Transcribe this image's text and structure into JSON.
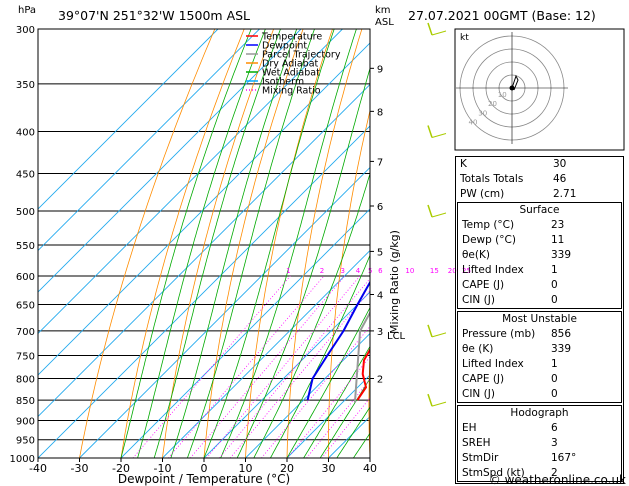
{
  "header": {
    "hpa_label": "hPa",
    "location": "39°07'N  251°32'W  1500m  ASL",
    "km_label": "km",
    "asl_label": "ASL",
    "datetime": "27.07.2021  00GMT  (Base: 12)"
  },
  "footer": {
    "credit": "© weatheronline.co.uk"
  },
  "chart_data": {
    "type": "skew-t",
    "xlabel": "Dewpoint / Temperature (°C)",
    "ylabel_right": "Mixing Ratio (g/kg)",
    "x_ticks": [
      -40,
      -30,
      -20,
      -10,
      0,
      10,
      20,
      30,
      40
    ],
    "pressure_ticks": [
      300,
      350,
      400,
      450,
      500,
      550,
      600,
      650,
      700,
      750,
      800,
      850,
      900,
      950,
      1000
    ],
    "pressure_range": [
      300,
      1000
    ],
    "temp_range": [
      -40,
      40
    ],
    "km_ticks": [
      {
        "p": 800,
        "label": "2"
      },
      {
        "p": 700,
        "label": "3"
      },
      {
        "p": 632,
        "label": "4"
      },
      {
        "p": 560,
        "label": "5"
      },
      {
        "p": 493,
        "label": "6"
      },
      {
        "p": 435,
        "label": "7"
      },
      {
        "p": 378,
        "label": "8"
      },
      {
        "p": 335,
        "label": "9"
      }
    ],
    "lcl": {
      "p": 700,
      "label": "LCL"
    },
    "mixing_ratio_labels": [
      "1",
      "2",
      "3",
      "4",
      "5",
      "6",
      "10",
      "15",
      "20",
      "25"
    ],
    "mixing_ratio_values": [
      1,
      2,
      3,
      4,
      5,
      6,
      10,
      15,
      20,
      25
    ],
    "legend": [
      {
        "name": "Temperature",
        "color": "#ff0000",
        "style": "solid"
      },
      {
        "name": "Dewpoint",
        "color": "#0000ff",
        "style": "solid"
      },
      {
        "name": "Parcel Trajectory",
        "color": "#999999",
        "style": "solid"
      },
      {
        "name": "Dry Adiabat",
        "color": "#ff8c00",
        "style": "solid"
      },
      {
        "name": "Wet Adiabat",
        "color": "#00aa00",
        "style": "solid"
      },
      {
        "name": "Isotherm",
        "color": "#00aaff",
        "style": "solid"
      },
      {
        "name": "Mixing Ratio",
        "color": "#ff00ff",
        "style": "dotted"
      }
    ],
    "temperature": [
      {
        "p": 850,
        "t": 23
      },
      {
        "p": 820,
        "t": 22
      },
      {
        "p": 790,
        "t": 18
      },
      {
        "p": 760,
        "t": 15
      },
      {
        "p": 700,
        "t": 12
      },
      {
        "p": 650,
        "t": 9
      },
      {
        "p": 600,
        "t": 5
      },
      {
        "p": 550,
        "t": 1
      },
      {
        "p": 500,
        "t": -4
      },
      {
        "p": 450,
        "t": -9
      },
      {
        "p": 400,
        "t": -16
      },
      {
        "p": 350,
        "t": -24
      },
      {
        "p": 300,
        "t": -34
      }
    ],
    "dewpoint": [
      {
        "p": 850,
        "t": 11
      },
      {
        "p": 800,
        "t": 7
      },
      {
        "p": 750,
        "t": 5
      },
      {
        "p": 700,
        "t": 3
      },
      {
        "p": 650,
        "t": 0
      },
      {
        "p": 600,
        "t": -3
      },
      {
        "p": 550,
        "t": -8
      },
      {
        "p": 500,
        "t": -15
      },
      {
        "p": 470,
        "t": -15
      },
      {
        "p": 450,
        "t": -19
      },
      {
        "p": 420,
        "t": -22
      },
      {
        "p": 400,
        "t": -27
      },
      {
        "p": 370,
        "t": -33
      },
      {
        "p": 355,
        "t": -42
      },
      {
        "p": 345,
        "t": -37
      },
      {
        "p": 330,
        "t": -42
      },
      {
        "p": 315,
        "t": -54
      },
      {
        "p": 300,
        "t": -58
      }
    ],
    "parcel": [
      {
        "p": 856,
        "t": 23
      },
      {
        "p": 700,
        "t": 7
      },
      {
        "p": 600,
        "t": 1
      },
      {
        "p": 500,
        "t": -6
      },
      {
        "p": 400,
        "t": -18
      },
      {
        "p": 300,
        "t": -36
      }
    ],
    "hodograph": {
      "label": "kt",
      "rings": [
        "10",
        "20",
        "30",
        "40"
      ]
    }
  },
  "indices": [
    {
      "label": "K",
      "value": "30"
    },
    {
      "label": "Totals Totals",
      "value": "46"
    },
    {
      "label": "PW (cm)",
      "value": "2.71"
    }
  ],
  "surface": {
    "title": "Surface",
    "rows": [
      {
        "label": "Temp (°C)",
        "value": "23"
      },
      {
        "label": "Dewp (°C)",
        "value": "11"
      },
      {
        "label": "θe(K)",
        "value": "339"
      },
      {
        "label": "Lifted Index",
        "value": "1"
      },
      {
        "label": "CAPE (J)",
        "value": "0"
      },
      {
        "label": "CIN (J)",
        "value": "0"
      }
    ]
  },
  "unstable": {
    "title": "Most Unstable",
    "rows": [
      {
        "label": "Pressure (mb)",
        "value": "856"
      },
      {
        "label": "θe (K)",
        "value": "339"
      },
      {
        "label": "Lifted Index",
        "value": "1"
      },
      {
        "label": "CAPE (J)",
        "value": "0"
      },
      {
        "label": "CIN (J)",
        "value": "0"
      }
    ]
  },
  "hodograph_table": {
    "title": "Hodograph",
    "rows": [
      {
        "label": "EH",
        "value": "6"
      },
      {
        "label": "SREH",
        "value": "3"
      },
      {
        "label": "StmDir",
        "value": "167°"
      },
      {
        "label": "StmSpd (kt)",
        "value": "2"
      }
    ]
  }
}
